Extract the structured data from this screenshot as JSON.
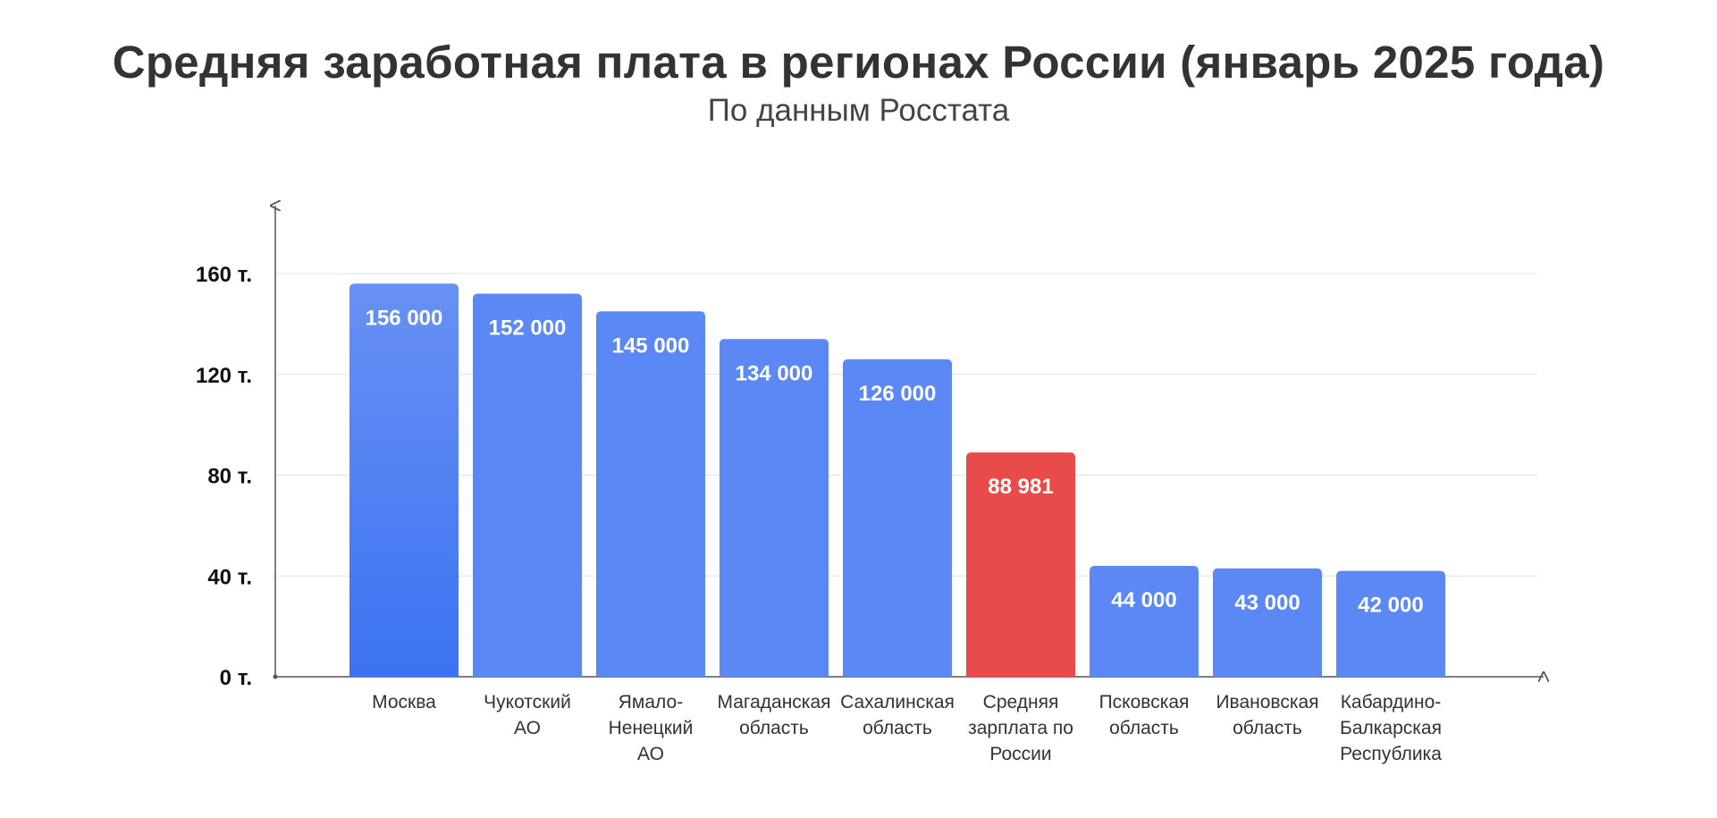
{
  "chart_data": {
    "type": "bar",
    "title": "Средняя заработная плата в регионах России (январь 2025 года)",
    "subtitle": "По данным Росстата",
    "categories": [
      [
        "Москва"
      ],
      [
        "Чукотский",
        "АО"
      ],
      [
        "Ямало-",
        "Ненецкий",
        "АО"
      ],
      [
        "Магаданская",
        "область"
      ],
      [
        "Сахалинская",
        "область"
      ],
      [
        "Средняя",
        "зарплата по",
        "России"
      ],
      [
        "Псковская",
        "область"
      ],
      [
        "Ивановская",
        "область"
      ],
      [
        "Кабардино-",
        "Балкарская",
        "Республика"
      ]
    ],
    "values": [
      156000,
      152000,
      145000,
      134000,
      126000,
      88981,
      44000,
      43000,
      42000
    ],
    "value_labels": [
      "156 000",
      "152 000",
      "145 000",
      "134 000",
      "126 000",
      "88 981",
      "44 000",
      "43 000",
      "42 000"
    ],
    "highlight_index": 5,
    "yticks": [
      0,
      40000,
      80000,
      120000,
      160000
    ],
    "ytick_labels": [
      "0 т.",
      "40 т.",
      "80 т.",
      "120 т.",
      "160 т."
    ],
    "ylim": [
      0,
      185000
    ],
    "grid": true,
    "xlabel": "",
    "ylabel": "",
    "colors": {
      "bar": "#5B88F4",
      "bar_first_top": "#6891F4",
      "bar_first_bottom": "#3C72F2",
      "highlight": "#E94A4A",
      "grid": "#E6E6E6",
      "axis": "#555555",
      "value_text": "#FFFFFF"
    }
  }
}
